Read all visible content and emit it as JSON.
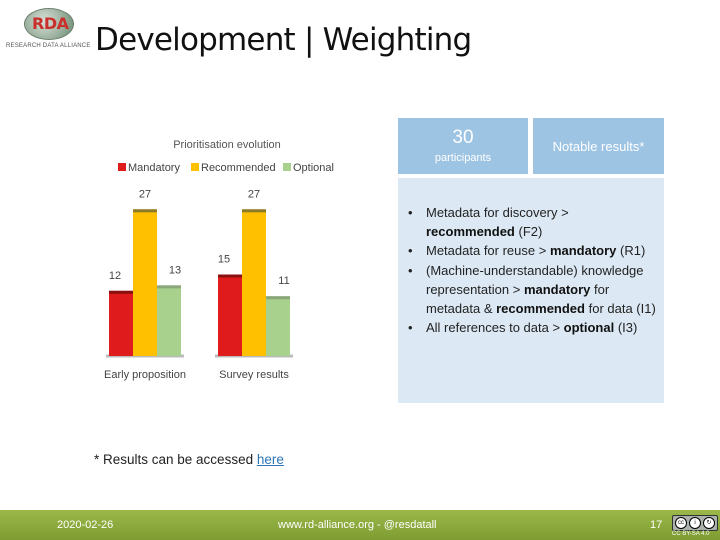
{
  "header": {
    "title": "Development | Weighting",
    "logo_text": "RDA",
    "logo_subtext": "RESEARCH DATA ALLIANCE"
  },
  "chart_data": {
    "type": "bar",
    "title": "Prioritisation evolution",
    "categories": [
      "Early proposition",
      "Survey results"
    ],
    "series": [
      {
        "name": "Mandatory",
        "values": [
          12,
          15
        ],
        "color": "#e01b1b"
      },
      {
        "name": "Recommended",
        "values": [
          27,
          27
        ],
        "color": "#ffc000"
      },
      {
        "name": "Optional",
        "values": [
          13,
          11
        ],
        "color": "#a9d18e"
      }
    ],
    "ylim": [
      0,
      30
    ],
    "legend": "top",
    "grid": false,
    "data_labels": true
  },
  "cards": {
    "participants_number": "30",
    "participants_label": "participants",
    "notable_label": "Notable results*"
  },
  "results": [
    {
      "text_before": "Metadata for discovery > ",
      "bold": "recommended",
      "text_after": " (F2)"
    },
    {
      "text_before": "Metadata for reuse > ",
      "bold": "mandatory",
      "text_after": " (R1)"
    },
    {
      "text_before": "(Machine-understandable) knowledge representation > ",
      "bold": "mandatory",
      "text_after": " for metadata & ",
      "bold2": "recommended",
      "text_after2": " for data (I1)"
    },
    {
      "text_before": "All references to data > ",
      "bold": "optional",
      "text_after": " (I3)"
    }
  ],
  "footnote": {
    "text": "* Results can be accessed ",
    "link": "here"
  },
  "footer": {
    "date": "2020-02-26",
    "url": "www.rd-alliance.org - @resdatall",
    "page": "17",
    "license": "CC BY-SA 4.0"
  }
}
